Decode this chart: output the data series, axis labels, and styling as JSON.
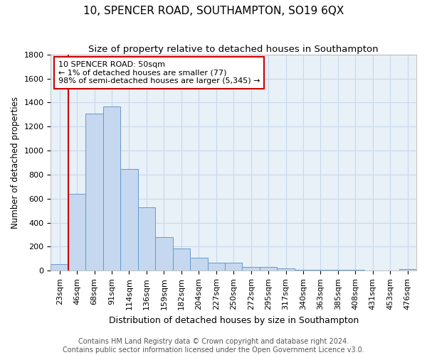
{
  "title": "10, SPENCER ROAD, SOUTHAMPTON, SO19 6QX",
  "subtitle": "Size of property relative to detached houses in Southampton",
  "xlabel": "Distribution of detached houses by size in Southampton",
  "ylabel": "Number of detached properties",
  "categories": [
    "23sqm",
    "46sqm",
    "68sqm",
    "91sqm",
    "114sqm",
    "136sqm",
    "159sqm",
    "182sqm",
    "204sqm",
    "227sqm",
    "250sqm",
    "272sqm",
    "295sqm",
    "317sqm",
    "340sqm",
    "363sqm",
    "385sqm",
    "408sqm",
    "431sqm",
    "453sqm",
    "476sqm"
  ],
  "values": [
    55,
    640,
    1305,
    1365,
    845,
    530,
    280,
    183,
    110,
    65,
    65,
    30,
    30,
    22,
    10,
    10,
    10,
    5,
    3,
    3,
    15
  ],
  "bar_color": "#c5d8ef",
  "bar_edgecolor": "#6699cc",
  "vline_color": "#cc0000",
  "annotation_text": "10 SPENCER ROAD: 50sqm\n← 1% of detached houses are smaller (77)\n98% of semi-detached houses are larger (5,345) →",
  "annotation_box_edgecolor": "#cc0000",
  "annotation_box_facecolor": "#ffffff",
  "ylim": [
    0,
    1800
  ],
  "yticks": [
    0,
    200,
    400,
    600,
    800,
    1000,
    1200,
    1400,
    1600,
    1800
  ],
  "grid_color": "#c8d8ea",
  "background_color": "#e8f0f8",
  "figure_facecolor": "#ffffff",
  "footer_line1": "Contains HM Land Registry data © Crown copyright and database right 2024.",
  "footer_line2": "Contains public sector information licensed under the Open Government Licence v3.0.",
  "title_fontsize": 11,
  "subtitle_fontsize": 9.5,
  "xlabel_fontsize": 9,
  "ylabel_fontsize": 8.5,
  "tick_fontsize": 8,
  "footer_fontsize": 7,
  "annotation_fontsize": 8
}
